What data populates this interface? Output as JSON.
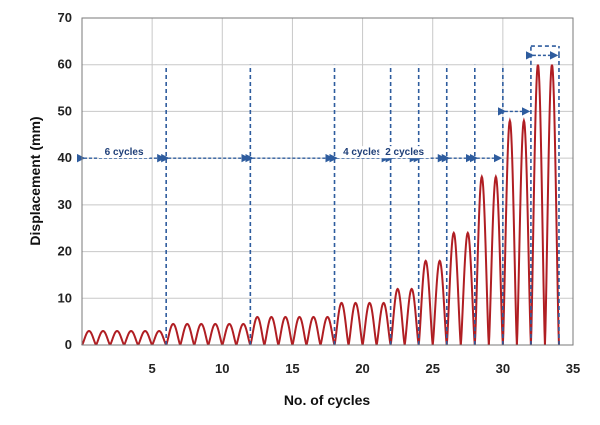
{
  "chart_data": {
    "type": "line",
    "xlabel": "No. of cycles",
    "ylabel": "Displacement (mm)",
    "xlim": [
      0,
      35
    ],
    "ylim": [
      0,
      70
    ],
    "xticks": [
      5,
      10,
      15,
      20,
      25,
      30,
      35
    ],
    "yticks": [
      0,
      10,
      20,
      30,
      40,
      50,
      60,
      70
    ],
    "grid": true,
    "series": [
      {
        "color": "#b01e23",
        "stages": [
          {
            "cycles": 6,
            "amplitude": 3
          },
          {
            "cycles": 6,
            "amplitude": 4.5
          },
          {
            "cycles": 6,
            "amplitude": 6
          },
          {
            "cycles": 4,
            "amplitude": 9
          },
          {
            "cycles": 2,
            "amplitude": 12
          },
          {
            "cycles": 2,
            "amplitude": 18
          },
          {
            "cycles": 2,
            "amplitude": 24
          },
          {
            "cycles": 2,
            "amplitude": 36
          },
          {
            "cycles": 2,
            "amplitude": 48
          },
          {
            "cycles": 2,
            "amplitude": 60
          }
        ]
      }
    ],
    "stage_boundaries": [
      6,
      12,
      18,
      22,
      24,
      26,
      28,
      30,
      32,
      34
    ],
    "annotations": [
      {
        "text": "6 cycles",
        "x": 3,
        "y": 40
      },
      {
        "text": "4 cycles",
        "x": 20,
        "y": 40
      },
      {
        "text": "2 cycles",
        "x": 23,
        "y": 40
      }
    ],
    "annotation_color": "#2e5c9e"
  }
}
